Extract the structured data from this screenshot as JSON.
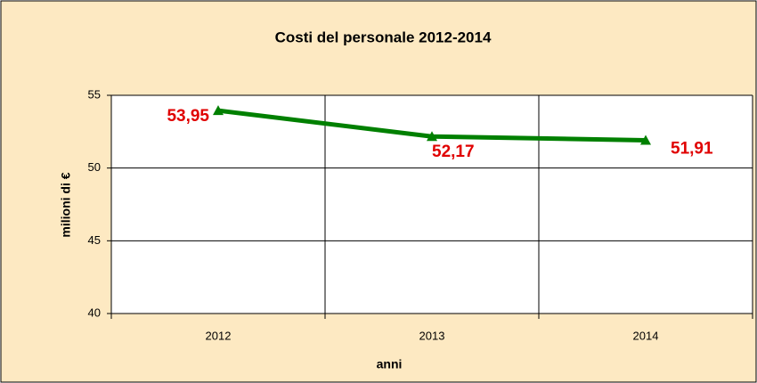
{
  "chart_data": {
    "type": "line",
    "title": "Costi del personale 2012-2014",
    "x_label": "anni",
    "y_label": "milioni di €",
    "categories": [
      "2012",
      "2013",
      "2014"
    ],
    "series": [
      {
        "name": "Costi del personale",
        "color": "#008000",
        "values": [
          53.95,
          52.17,
          51.91
        ],
        "value_labels": [
          "53,95",
          "52,17",
          "51,91"
        ]
      }
    ],
    "ylim": [
      40,
      55
    ],
    "yticks": [
      40,
      45,
      50,
      55
    ],
    "grid": true,
    "background": "#fde9c2",
    "plot_background": "#ffffff",
    "value_label_color": "#e00000"
  }
}
